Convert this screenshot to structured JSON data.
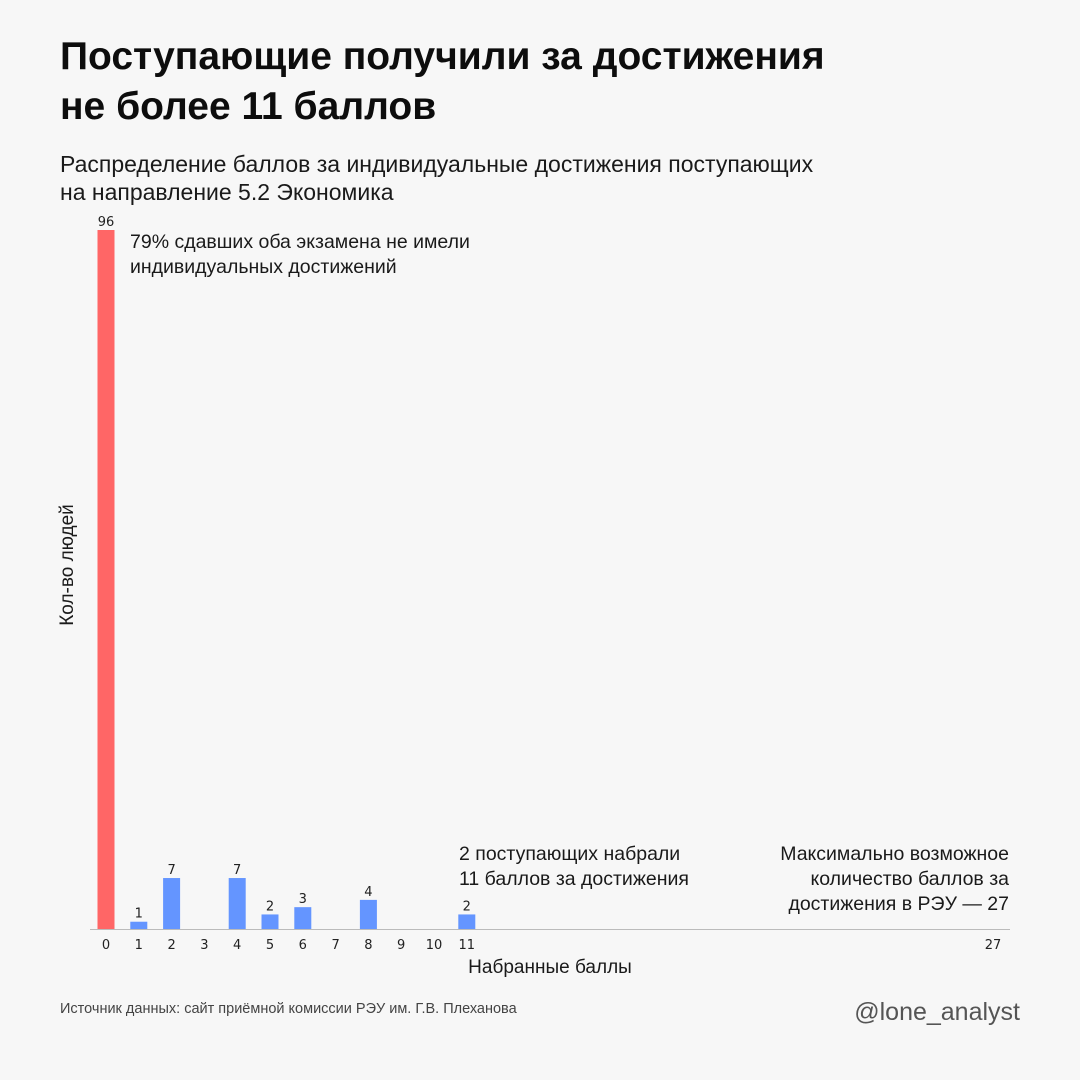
{
  "title_lines": [
    "Поступающие получили за достижения",
    "не более 11 баллов"
  ],
  "subtitle_lines": [
    "Распределение баллов за индивидуальные достижения поступающих",
    "на направление 5.2 Экономика"
  ],
  "annotations": {
    "top": [
      "79% сдавших оба экзамена не имели",
      "индивидуальных достижений"
    ],
    "eleven": [
      "2 поступающих набрали",
      "11 баллов за достижения"
    ],
    "max": [
      "Максимально возможное",
      "количество баллов за",
      "достижения в РЭУ — 27"
    ]
  },
  "footer": {
    "source": "Источник данных: сайт приёмной комиссии РЭУ им. Г.В. Плеханова",
    "handle": "@lone_analyst"
  },
  "colors": {
    "highlight": "#ff6666",
    "bar": "#6495ff",
    "axis": "#bbbbbb"
  },
  "chart_data": {
    "type": "bar",
    "title": "Поступающие получили за достижения не более 11 баллов",
    "subtitle": "Распределение баллов за индивидуальные достижения поступающих на направление 5.2 Экономика",
    "xlabel": "Набранные баллы",
    "ylabel": "Кол-во людей",
    "categories": [
      "0",
      "1",
      "2",
      "3",
      "4",
      "5",
      "6",
      "7",
      "8",
      "9",
      "10",
      "11",
      "27"
    ],
    "x": [
      0,
      1,
      2,
      3,
      4,
      5,
      6,
      7,
      8,
      9,
      10,
      11,
      27
    ],
    "values": [
      96,
      1,
      7,
      0,
      7,
      2,
      3,
      0,
      4,
      0,
      0,
      2,
      0
    ],
    "value_labels": [
      "96",
      "1",
      "7",
      "",
      "7",
      "2",
      "3",
      "",
      "4",
      "",
      "",
      "2",
      ""
    ],
    "highlight_category": "0",
    "ylim": [
      0,
      96
    ],
    "grid": false,
    "legend": "none"
  }
}
